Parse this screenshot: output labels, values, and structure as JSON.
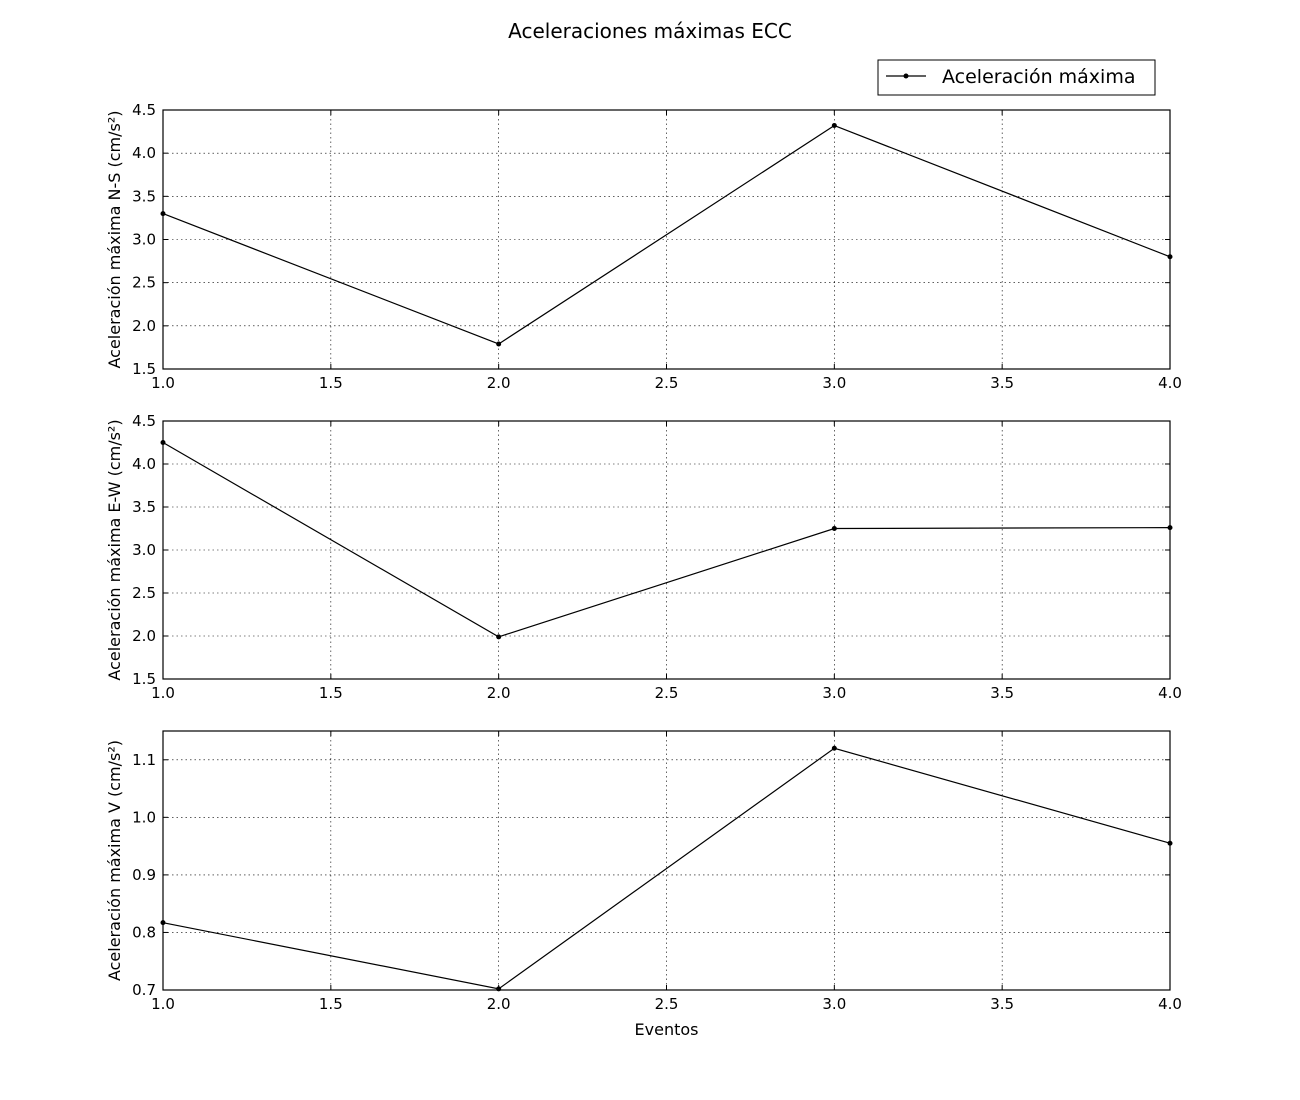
{
  "figure": {
    "title": "Aceleraciones máximas ECC",
    "legend": {
      "label": "Aceleración máxima",
      "position": "top-right"
    },
    "line_color": "#000000",
    "grid": true
  },
  "chart_data": [
    {
      "type": "line",
      "ylabel": "Aceleración máxima N-S (cm/s²)",
      "xlabel": "",
      "xlim": [
        1.0,
        4.0
      ],
      "ylim": [
        1.5,
        4.5
      ],
      "xticks": [
        "1.0",
        "1.5",
        "2.0",
        "2.5",
        "3.0",
        "3.5",
        "4.0"
      ],
      "yticks": [
        "1.5",
        "2.0",
        "2.5",
        "3.0",
        "3.5",
        "4.0",
        "4.5"
      ],
      "series": [
        {
          "name": "Aceleración máxima",
          "x": [
            1,
            2,
            3,
            4
          ],
          "y": [
            3.3,
            1.79,
            4.32,
            2.8
          ]
        }
      ]
    },
    {
      "type": "line",
      "ylabel": "Aceleración máxima E-W (cm/s²)",
      "xlabel": "",
      "xlim": [
        1.0,
        4.0
      ],
      "ylim": [
        1.5,
        4.5
      ],
      "xticks": [
        "1.0",
        "1.5",
        "2.0",
        "2.5",
        "3.0",
        "3.5",
        "4.0"
      ],
      "yticks": [
        "1.5",
        "2.0",
        "2.5",
        "3.0",
        "3.5",
        "4.0",
        "4.5"
      ],
      "series": [
        {
          "name": "Aceleración máxima",
          "x": [
            1,
            2,
            3,
            4
          ],
          "y": [
            4.25,
            1.99,
            3.25,
            3.26
          ]
        }
      ]
    },
    {
      "type": "line",
      "ylabel": "Aceleración máxima V (cm/s²)",
      "xlabel": "Eventos",
      "xlim": [
        1.0,
        4.0
      ],
      "ylim": [
        0.7,
        1.15
      ],
      "xticks": [
        "1.0",
        "1.5",
        "2.0",
        "2.5",
        "3.0",
        "3.5",
        "4.0"
      ],
      "yticks": [
        "0.7",
        "0.8",
        "0.9",
        "1.0",
        "1.1"
      ],
      "series": [
        {
          "name": "Aceleración máxima",
          "x": [
            1,
            2,
            3,
            4
          ],
          "y": [
            0.817,
            0.702,
            1.12,
            0.955
          ]
        }
      ]
    }
  ]
}
